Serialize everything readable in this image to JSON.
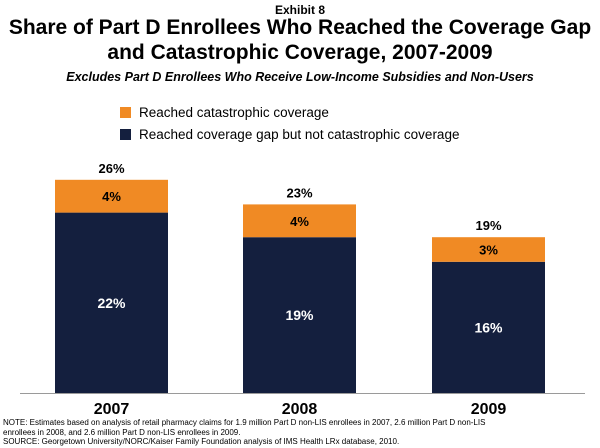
{
  "exhibit_label": "Exhibit 8",
  "title_line1": "Share of Part D Enrollees Who Reached the Coverage Gap",
  "title_line2": "and Catastrophic Coverage, 2007-2009",
  "subtitle": "Excludes Part D Enrollees Who Receive Low-Income Subsidies and Non-Users",
  "colors": {
    "catastrophic": "#F08A24",
    "gap": "#141F3E"
  },
  "legend": {
    "catastrophic": "Reached catastrophic coverage",
    "gap": "Reached coverage gap but not catastrophic coverage"
  },
  "chart_data": {
    "type": "bar",
    "stacked": true,
    "categories": [
      "2007",
      "2008",
      "2009"
    ],
    "series": [
      {
        "name": "Reached coverage gap but not catastrophic coverage",
        "values": [
          22,
          19,
          16
        ],
        "labels": [
          "22%",
          "19%",
          "16%"
        ]
      },
      {
        "name": "Reached catastrophic coverage",
        "values": [
          4,
          4,
          3
        ],
        "labels": [
          "4%",
          "4%",
          "3%"
        ]
      }
    ],
    "totals": [
      26,
      23,
      19
    ],
    "total_labels": [
      "26%",
      "23%",
      "19%"
    ],
    "ylim": [
      0,
      30
    ]
  },
  "note_line1": "NOTE:  Estimates based on analysis of retail pharmacy claims for 1.9 million Part D non-LIS enrollees in 2007, 2.6 million Part D non-LIS",
  "note_line2": "enrollees in 2008, and 2.6 million Part D non-LIS enrollees in 2009.",
  "source_line": "SOURCE:  Georgetown University/NORC/Kaiser Family Foundation analysis of IMS Health LRx database, 2010."
}
